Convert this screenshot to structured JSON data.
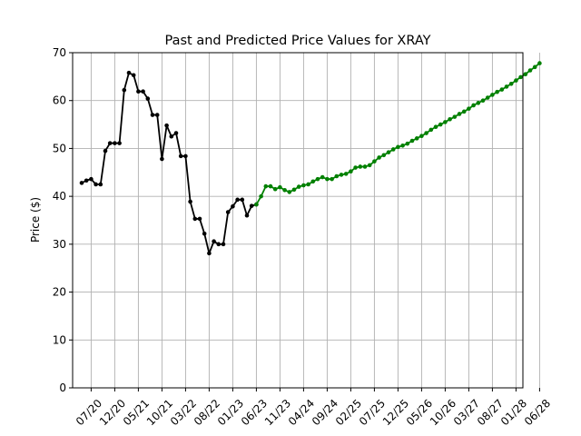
{
  "chart_data": {
    "type": "line",
    "title": "Past and Predicted Price Values for XRAY",
    "xlabel": "",
    "ylabel": "Price ($)",
    "ylim": [
      0,
      70
    ],
    "yticks": [
      0,
      10,
      20,
      30,
      40,
      50,
      60,
      70
    ],
    "grid": true,
    "x_tick_labels": [
      "07/20",
      "12/20",
      "05/21",
      "10/21",
      "03/22",
      "08/22",
      "01/23",
      "06/23",
      "11/23",
      "04/24",
      "09/24",
      "02/25",
      "07/25",
      "12/25",
      "05/26",
      "10/26",
      "03/27",
      "08/27",
      "01/28",
      "06/28"
    ],
    "series": [
      {
        "color": "#000000",
        "x": [
          "05/20",
          "06/20",
          "07/20",
          "08/20",
          "09/20",
          "10/20",
          "11/20",
          "12/20",
          "01/21",
          "02/21",
          "03/21",
          "04/21",
          "05/21",
          "06/21",
          "07/21",
          "08/21",
          "09/21",
          "10/21",
          "11/21",
          "12/21",
          "01/22",
          "02/22",
          "03/22",
          "04/22",
          "05/22",
          "06/22",
          "07/22",
          "08/22",
          "09/22",
          "10/22",
          "11/22",
          "12/22",
          "01/23",
          "02/23",
          "03/23",
          "04/23",
          "05/23",
          "06/23"
        ],
        "values": [
          42.8,
          43.3,
          43.6,
          42.5,
          42.5,
          49.5,
          51.1,
          51.1,
          51.1,
          62.2,
          65.8,
          65.3,
          61.9,
          61.9,
          60.4,
          57.0,
          57.0,
          47.8,
          54.8,
          52.5,
          53.2,
          48.4,
          48.4,
          38.9,
          35.3,
          35.3,
          32.2,
          28.1,
          30.6,
          30.0,
          30.0,
          36.7,
          37.9,
          39.3,
          39.3,
          36.0,
          38.0,
          38.3
        ]
      },
      {
        "color": "#008000",
        "x": [
          "06/23",
          "07/23",
          "08/23",
          "09/23",
          "10/23",
          "11/23",
          "12/23",
          "01/24",
          "02/24",
          "03/24",
          "04/24",
          "05/24",
          "06/24",
          "07/24",
          "08/24",
          "09/24",
          "10/24",
          "11/24",
          "12/24",
          "01/25",
          "02/25",
          "03/25",
          "04/25",
          "05/25",
          "06/25",
          "07/25",
          "08/25",
          "09/25",
          "10/25",
          "11/25",
          "12/25",
          "01/26",
          "02/26",
          "03/26",
          "04/26",
          "05/26",
          "06/26",
          "07/26",
          "08/26",
          "09/26",
          "10/26",
          "11/26",
          "12/26",
          "01/27",
          "02/27",
          "03/27",
          "04/27",
          "05/27",
          "06/27",
          "07/27",
          "08/27",
          "09/27",
          "10/27",
          "11/27",
          "12/27",
          "01/28",
          "02/28",
          "03/28",
          "04/28",
          "05/28",
          "06/28"
        ],
        "values": [
          38.3,
          40.0,
          42.1,
          42.1,
          41.5,
          41.9,
          41.3,
          40.9,
          41.4,
          42.0,
          42.3,
          42.5,
          43.1,
          43.6,
          44.0,
          43.6,
          43.6,
          44.2,
          44.5,
          44.7,
          45.2,
          46.0,
          46.2,
          46.2,
          46.5,
          47.3,
          48.1,
          48.6,
          49.2,
          49.8,
          50.3,
          50.6,
          51.0,
          51.6,
          52.1,
          52.6,
          53.2,
          53.9,
          54.5,
          55.0,
          55.5,
          56.1,
          56.6,
          57.2,
          57.7,
          58.3,
          59.0,
          59.5,
          60.0,
          60.6,
          61.2,
          61.8,
          62.3,
          62.9,
          63.5,
          64.2,
          64.9,
          65.5,
          66.3,
          67.0,
          67.8
        ]
      }
    ]
  }
}
